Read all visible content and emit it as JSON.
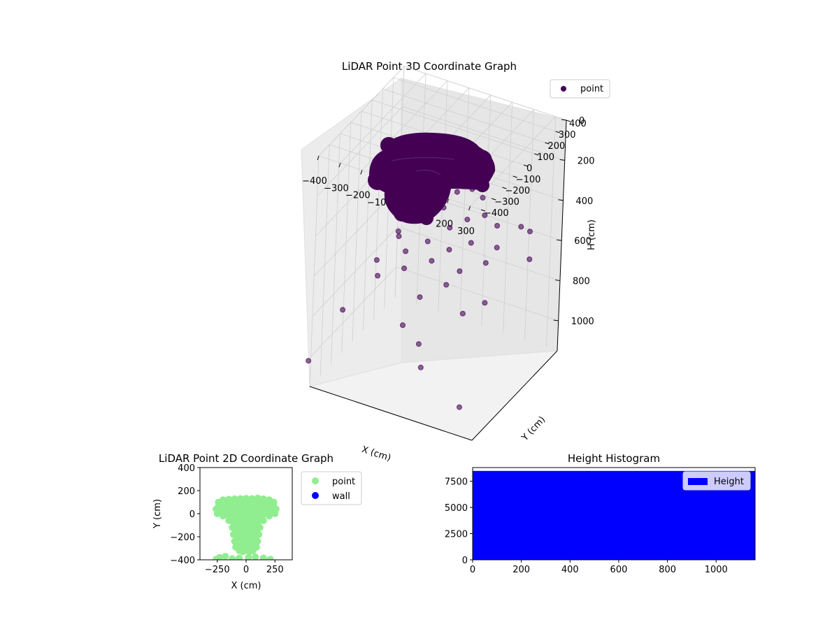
{
  "chart_data": [
    {
      "type": "scatter3d",
      "title": "LiDAR Point 3D Coordinate Graph",
      "xlabel": "X (cm)",
      "ylabel": "Y (cm)",
      "zlabel": "H (cm)",
      "xticks": [
        -400,
        -300,
        -200,
        -100,
        0,
        100,
        200,
        300
      ],
      "yticks": [
        -400,
        -300,
        -200,
        -100,
        0,
        100,
        200,
        300,
        400
      ],
      "zticks": [
        0,
        200,
        400,
        600,
        800,
        1000
      ],
      "xlim": [
        -400,
        350
      ],
      "ylim": [
        -400,
        400
      ],
      "zlim": [
        0,
        1150
      ],
      "z_inverted": true,
      "legend": [
        {
          "label": "point",
          "color": "#440154"
        }
      ],
      "legend_position": "upper-right",
      "cluster": {
        "x_range": [
          -300,
          300
        ],
        "y_range": [
          -400,
          150
        ],
        "h_range": [
          150,
          400
        ],
        "note_points": "dense"
      },
      "series": [
        {
          "name": "point",
          "color": "#440154",
          "points": [
            [
              -420,
              -380,
              1040
            ],
            [
              -380,
              -150,
              900
            ],
            [
              -350,
              100,
              780
            ],
            [
              -320,
              50,
              820
            ],
            [
              -300,
              200,
              700
            ],
            [
              -280,
              150,
              640
            ],
            [
              -260,
              300,
              560
            ],
            [
              -240,
              250,
              600
            ],
            [
              -220,
              100,
              690
            ],
            [
              -200,
              50,
              740
            ],
            [
              -180,
              200,
              520
            ],
            [
              -160,
              300,
              480
            ],
            [
              -150,
              -50,
              950
            ],
            [
              -130,
              120,
              620
            ],
            [
              -110,
              220,
              500
            ],
            [
              -100,
              0,
              820
            ],
            [
              -90,
              80,
              680
            ],
            [
              -70,
              260,
              430
            ],
            [
              -60,
              180,
              560
            ],
            [
              -50,
              -100,
              980
            ],
            [
              -40,
              140,
              640
            ],
            [
              -20,
              300,
              420
            ],
            [
              -10,
              60,
              760
            ],
            [
              0,
              220,
              520
            ],
            [
              10,
              -200,
              1020
            ],
            [
              20,
              320,
              460
            ],
            [
              30,
              100,
              700
            ],
            [
              40,
              180,
              600
            ],
            [
              60,
              260,
              500
            ],
            [
              80,
              40,
              860
            ],
            [
              100,
              300,
              560
            ],
            [
              120,
              160,
              660
            ],
            [
              140,
              220,
              610
            ],
            [
              160,
              80,
              800
            ],
            [
              200,
              320,
              540
            ],
            [
              240,
              -300,
              1080
            ],
            [
              260,
              280,
              520
            ],
            [
              300,
              200,
              600
            ]
          ]
        }
      ]
    },
    {
      "type": "scatter",
      "title": "LiDAR Point 2D Coordinate Graph",
      "xlabel": "X (cm)",
      "ylabel": "Y (cm)",
      "xlim": [
        -400,
        400
      ],
      "ylim": [
        -400,
        400
      ],
      "xticks": [
        -250,
        0,
        250
      ],
      "yticks": [
        -400,
        -200,
        0,
        200,
        400
      ],
      "legend": [
        {
          "label": "point",
          "color": "#90ee90"
        },
        {
          "label": "wall",
          "color": "#0000ff"
        }
      ],
      "legend_position": "outside-right",
      "series": [
        {
          "name": "point",
          "color": "#90ee90",
          "points": [
            [
              -240,
              100
            ],
            [
              -200,
              120
            ],
            [
              -150,
              125
            ],
            [
              -100,
              128
            ],
            [
              -50,
              130
            ],
            [
              0,
              132
            ],
            [
              50,
              130
            ],
            [
              100,
              135
            ],
            [
              150,
              128
            ],
            [
              200,
              120
            ],
            [
              240,
              100
            ],
            [
              260,
              40
            ],
            [
              -260,
              40
            ],
            [
              -250,
              0
            ],
            [
              250,
              0
            ],
            [
              -200,
              -20
            ],
            [
              200,
              -20
            ],
            [
              -150,
              -60
            ],
            [
              150,
              -60
            ],
            [
              -120,
              -120
            ],
            [
              120,
              -120
            ],
            [
              -110,
              -180
            ],
            [
              110,
              -180
            ],
            [
              -100,
              -240
            ],
            [
              100,
              -240
            ],
            [
              -90,
              -290
            ],
            [
              90,
              -290
            ],
            [
              -60,
              -320
            ],
            [
              60,
              -320
            ],
            [
              -30,
              -330
            ],
            [
              30,
              -330
            ],
            [
              0,
              -320
            ],
            [
              -50,
              50
            ],
            [
              50,
              50
            ],
            [
              0,
              0
            ],
            [
              -80,
              -40
            ],
            [
              80,
              -40
            ],
            [
              0,
              -100
            ],
            [
              -40,
              -200
            ],
            [
              40,
              -200
            ],
            [
              0,
              -260
            ],
            [
              -230,
              -380
            ],
            [
              -180,
              -370
            ],
            [
              -120,
              -390
            ],
            [
              -60,
              -385
            ],
            [
              20,
              -380
            ],
            [
              80,
              -375
            ],
            [
              150,
              -385
            ],
            [
              210,
              -395
            ],
            [
              -260,
              -395
            ]
          ]
        },
        {
          "name": "wall",
          "color": "#0000ff",
          "points": []
        }
      ]
    },
    {
      "type": "bar",
      "title": "Height Histogram",
      "xlabel": "",
      "ylabel": "",
      "xlim": [
        0,
        1160
      ],
      "ylim": [
        0,
        8800
      ],
      "xticks": [
        0,
        200,
        400,
        600,
        800,
        1000
      ],
      "yticks": [
        0,
        2500,
        5000,
        7500
      ],
      "legend": [
        {
          "label": "Height",
          "color": "#0000ff"
        }
      ],
      "legend_position": "upper-right",
      "series": [
        {
          "name": "Height",
          "color": "#0000ff",
          "bins": [
            [
              0,
              1160,
              8480
            ]
          ]
        }
      ]
    }
  ]
}
